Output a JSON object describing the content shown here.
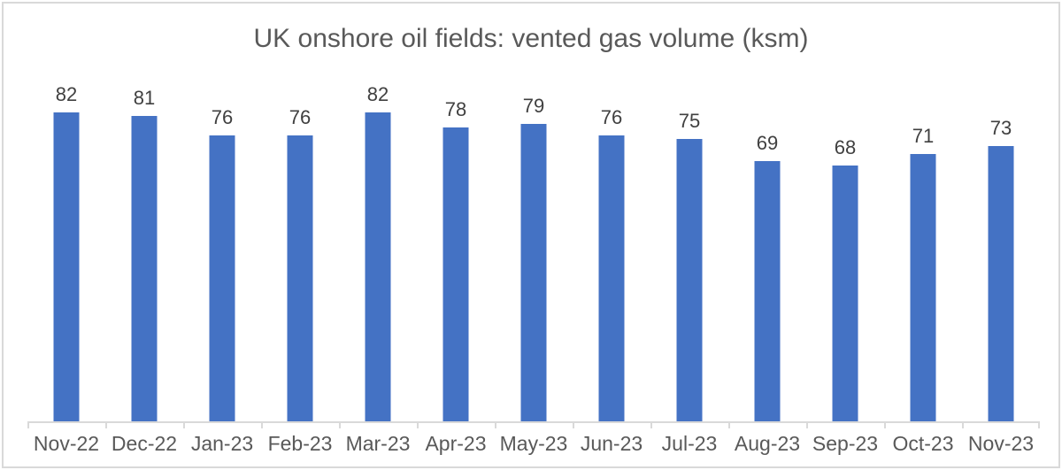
{
  "chart_data": {
    "type": "bar",
    "title": "UK onshore oil fields: vented gas volume (ksm)",
    "categories": [
      "Nov-22",
      "Dec-22",
      "Jan-23",
      "Feb-23",
      "Mar-23",
      "Apr-23",
      "May-23",
      "Jun-23",
      "Jul-23",
      "Aug-23",
      "Sep-23",
      "Oct-23",
      "Nov-23"
    ],
    "values": [
      82,
      81,
      76,
      76,
      82,
      78,
      79,
      76,
      75,
      69,
      68,
      71,
      73
    ],
    "xlabel": "",
    "ylabel": "",
    "ylim": [
      0,
      90
    ],
    "grid": false,
    "legend": false,
    "data_labels": true,
    "bar_color": "#4472C4"
  },
  "colors": {
    "bar": "#4472C4",
    "title_text": "#595959",
    "axis_label_text": "#595959",
    "value_label_text": "#404040",
    "axis_line": "#D9D9D9",
    "frame_border": "#D9D9D9",
    "background": "#FFFFFF"
  }
}
